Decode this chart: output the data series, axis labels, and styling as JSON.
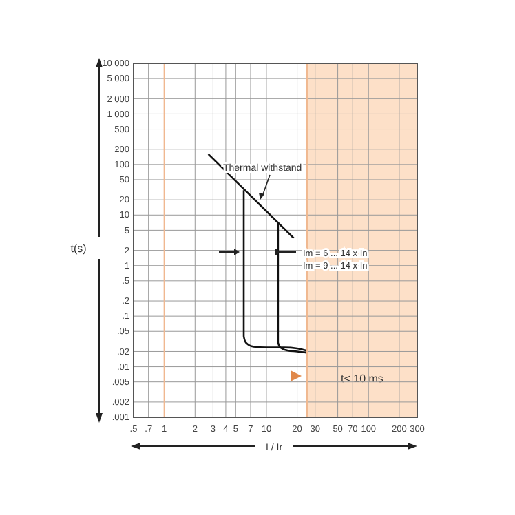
{
  "chart_data": {
    "type": "line",
    "xlabel": "I / Ir",
    "ylabel": "t(s)",
    "log": "xy",
    "grid": true,
    "marker": "none",
    "line_style": "solid",
    "xlim": [
      0.5,
      300
    ],
    "ylim": [
      0.001,
      10000
    ],
    "xticks": [
      {
        "value": 0.5,
        "label": ".5"
      },
      {
        "value": 0.7,
        "label": ".7"
      },
      1,
      2,
      3,
      4,
      5,
      {
        "value": 7,
        "label": "7"
      },
      10,
      20,
      30,
      50,
      70,
      100,
      200,
      300
    ],
    "yticks": [
      {
        "value": 10000,
        "label": "10 000"
      },
      {
        "value": 5000,
        "label": "5 000"
      },
      {
        "value": 2000,
        "label": "2 000"
      },
      {
        "value": 1000,
        "label": "1 000"
      },
      500,
      200,
      100,
      50,
      20,
      10,
      5,
      2,
      1,
      {
        "value": 0.5,
        "label": ".5"
      },
      {
        "value": 0.2,
        "label": ".2"
      },
      {
        "value": 0.1,
        "label": ".1"
      },
      {
        "value": 0.05,
        "label": ".05"
      },
      {
        "value": 0.02,
        "label": ".02"
      },
      {
        "value": 0.01,
        "label": ".01"
      },
      {
        "value": 0.005,
        "label": ".005"
      },
      {
        "value": 0.002,
        "label": ".002"
      },
      {
        "value": 0.001,
        "label": ".001"
      }
    ],
    "series": [
      {
        "color": "#111111",
        "x": [
          2.7,
          18.5
        ],
        "values": [
          160,
          3.5
        ]
      },
      {
        "color": "#111111",
        "x": [
          6,
          6,
          6.3,
          7.5,
          10,
          15,
          20,
          24.5
        ],
        "values": [
          31,
          0.04,
          0.03,
          0.025,
          0.024,
          0.024,
          0.023,
          0.021
        ]
      },
      {
        "color": "#111111",
        "x": [
          13,
          13,
          13.7,
          16,
          20,
          24.5
        ],
        "values": [
          6.9,
          0.03,
          0.024,
          0.021,
          0.02,
          0.019
        ]
      }
    ],
    "ref_lines": [
      {
        "axis": "x",
        "value": 1,
        "color": "#f0b890"
      },
      {
        "axis": "x",
        "value": 25,
        "color": "#f0b890"
      }
    ],
    "bands": [
      {
        "axis": "x",
        "from": 25,
        "to": 300,
        "label": "t< 10 ms",
        "color": "#fde0c8"
      }
    ],
    "annotations": [
      "Thermal withstand",
      "Im = 6 ... 14 x In",
      "Im = 9 ... 14 x In"
    ]
  }
}
